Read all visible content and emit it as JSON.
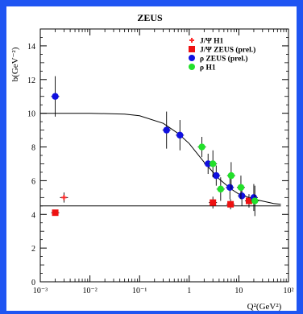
{
  "chart_data": {
    "type": "scatter",
    "title": "ZEUS",
    "xlabel": "Q²(GeV²)",
    "ylabel": "b(GeV⁻²)",
    "x_scale": "log",
    "xlim": [
      0.001,
      100
    ],
    "ylim": [
      0,
      15
    ],
    "x_ticks": [
      {
        "value": 0.001,
        "label": "10⁻³"
      },
      {
        "value": 0.01,
        "label": "10⁻²"
      },
      {
        "value": 0.1,
        "label": "10⁻¹"
      },
      {
        "value": 1,
        "label": "1"
      },
      {
        "value": 10,
        "label": "10"
      },
      {
        "value": 100,
        "label": "10²"
      }
    ],
    "y_ticks": [
      {
        "value": 0,
        "label": "0"
      },
      {
        "value": 2,
        "label": "2"
      },
      {
        "value": 4,
        "label": "4"
      },
      {
        "value": 6,
        "label": "6"
      },
      {
        "value": 8,
        "label": "8"
      },
      {
        "value": 10,
        "label": "10"
      },
      {
        "value": 12,
        "label": "12"
      },
      {
        "value": 14,
        "label": "14"
      }
    ],
    "grid": false,
    "legend_position": "top-right",
    "series": [
      {
        "name": "J/Ψ H1",
        "marker": "star",
        "color": "#ff2a2a",
        "points": [
          {
            "x": 0.003,
            "y": 5.0,
            "yerr": 0.3
          }
        ]
      },
      {
        "name": "J/Ψ ZEUS (prel.)",
        "marker": "square",
        "color": "#ee1111",
        "points": [
          {
            "x": 0.002,
            "y": 4.1,
            "yerr": 0.15
          },
          {
            "x": 3.0,
            "y": 4.7,
            "yerr": 0.35
          },
          {
            "x": 6.8,
            "y": 4.6,
            "yerr": 0.3
          },
          {
            "x": 16.0,
            "y": 4.8,
            "yerr": 0.4
          }
        ]
      },
      {
        "name": "ρ ZEUS (prel.)",
        "marker": "circle",
        "color": "#1010e0",
        "points": [
          {
            "x": 0.002,
            "y": 11.0,
            "yerr": 1.2
          },
          {
            "x": 0.35,
            "y": 9.0,
            "yerr": 1.1
          },
          {
            "x": 0.65,
            "y": 8.7,
            "yerr": 0.9
          },
          {
            "x": 2.4,
            "y": 7.0,
            "yerr": 0.6
          },
          {
            "x": 3.5,
            "y": 6.3,
            "yerr": 0.6
          },
          {
            "x": 6.6,
            "y": 5.6,
            "yerr": 0.7
          },
          {
            "x": 11.5,
            "y": 5.1,
            "yerr": 0.6
          },
          {
            "x": 20.0,
            "y": 5.0,
            "yerr": 0.8
          }
        ]
      },
      {
        "name": "ρ H1",
        "marker": "circle",
        "color": "#22e02a",
        "points": [
          {
            "x": 1.8,
            "y": 8.0,
            "yerr": 0.6
          },
          {
            "x": 3.0,
            "y": 7.0,
            "yerr": 0.8
          },
          {
            "x": 4.3,
            "y": 5.5,
            "yerr": 0.7
          },
          {
            "x": 7.0,
            "y": 6.3,
            "yerr": 0.8
          },
          {
            "x": 11.0,
            "y": 5.6,
            "yerr": 0.7
          },
          {
            "x": 21.0,
            "y": 4.8,
            "yerr": 0.9
          }
        ]
      }
    ],
    "curves": [
      {
        "kind": "fit",
        "points": [
          {
            "x": 0.001,
            "y": 10.0
          },
          {
            "x": 0.01,
            "y": 10.0
          },
          {
            "x": 0.05,
            "y": 9.95
          },
          {
            "x": 0.1,
            "y": 9.85
          },
          {
            "x": 0.3,
            "y": 9.4
          },
          {
            "x": 0.6,
            "y": 8.8
          },
          {
            "x": 1,
            "y": 8.2
          },
          {
            "x": 2,
            "y": 7.1
          },
          {
            "x": 4,
            "y": 6.1
          },
          {
            "x": 7,
            "y": 5.5
          },
          {
            "x": 10,
            "y": 5.2
          },
          {
            "x": 20,
            "y": 4.9
          },
          {
            "x": 50,
            "y": 4.65
          },
          {
            "x": 70,
            "y": 4.6
          }
        ]
      },
      {
        "kind": "constant",
        "points": [
          {
            "x": 0.001,
            "y": 4.5
          },
          {
            "x": 70,
            "y": 4.5
          }
        ]
      }
    ]
  }
}
